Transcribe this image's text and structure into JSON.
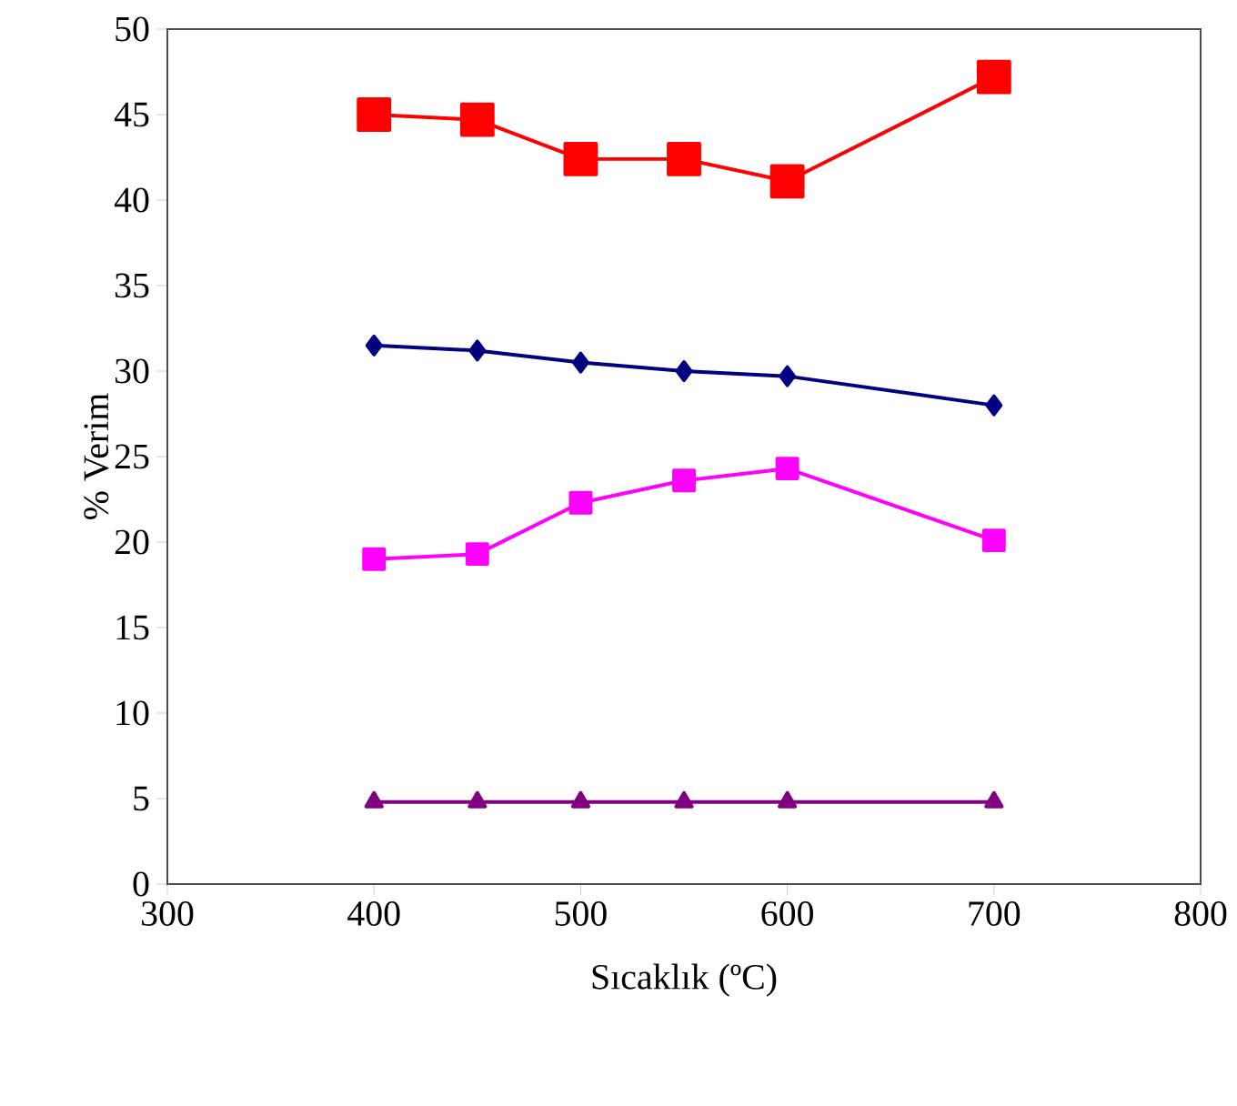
{
  "chart_data": {
    "type": "line",
    "xlabel": "Sıcaklık (ºC)",
    "ylabel": "% Verim",
    "x": [
      400,
      450,
      500,
      550,
      600,
      700
    ],
    "series": [
      {
        "color": "#ff0000",
        "marker": "square",
        "values": [
          45.0,
          44.7,
          42.4,
          42.4,
          41.1,
          47.2
        ]
      },
      {
        "color": "#000080",
        "marker": "diamond",
        "values": [
          31.5,
          31.2,
          30.5,
          30.0,
          29.7,
          28.0
        ]
      },
      {
        "color": "#ff00ff",
        "marker": "square",
        "values": [
          19.0,
          19.3,
          22.3,
          23.6,
          24.3,
          20.1
        ]
      },
      {
        "color": "#800080",
        "marker": "triangle",
        "values": [
          4.8,
          4.8,
          4.8,
          4.8,
          4.8,
          4.8
        ]
      }
    ],
    "xlim": [
      300,
      800
    ],
    "xticks": [
      300,
      400,
      500,
      600,
      700,
      800
    ],
    "ylim": [
      0,
      50
    ],
    "yticks": [
      0,
      5,
      10,
      15,
      20,
      25,
      30,
      35,
      40,
      45,
      50
    ],
    "grid": false
  }
}
